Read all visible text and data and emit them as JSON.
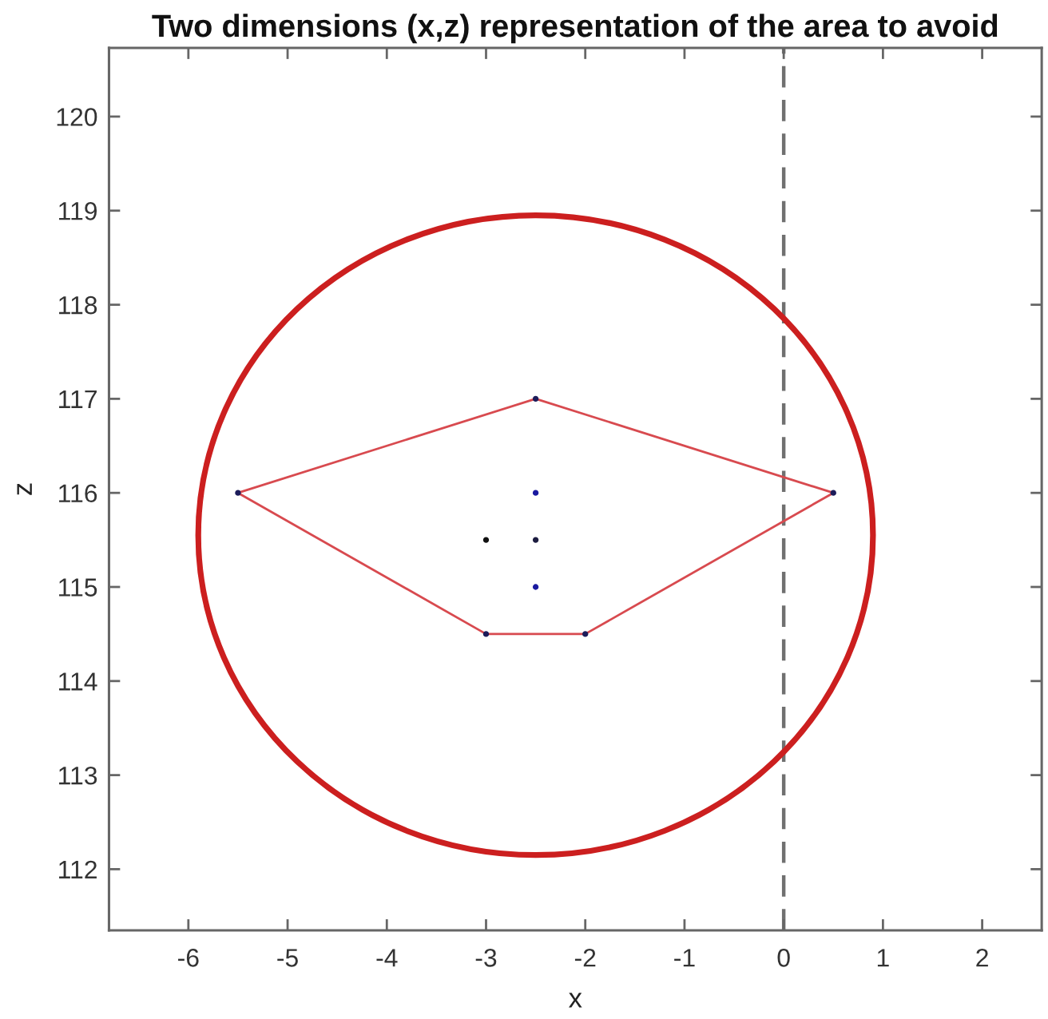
{
  "chart_data": {
    "type": "line",
    "title": "Two dimensions (x,z) representation of the area to avoid",
    "xlabel": "x",
    "ylabel": "z",
    "xlim": [
      -6.8,
      2.6
    ],
    "ylim": [
      111.35,
      120.73
    ],
    "xticks": [
      -6,
      -5,
      -4,
      -3,
      -2,
      -1,
      0,
      1,
      2
    ],
    "yticks": [
      112,
      113,
      114,
      115,
      116,
      117,
      118,
      119,
      120
    ],
    "grid": false,
    "series": [
      {
        "color": "#d84a4f",
        "marker": "none",
        "line_style": "solid",
        "x": [
          -5.5,
          -2.5,
          0.5
        ],
        "values": [
          116,
          117,
          116
        ]
      },
      {
        "color": "#d84a4f",
        "marker": "none",
        "line_style": "solid",
        "x": [
          -5.5,
          -3,
          -2,
          0.5
        ],
        "values": [
          116,
          114.5,
          114.5,
          116
        ]
      },
      {
        "type": "scatter",
        "marker": "circle",
        "x": [
          -5.5,
          -2.5,
          0.5,
          -2,
          -3,
          -2.5,
          -3,
          -2.5,
          -2.5
        ],
        "values": [
          116,
          117,
          116,
          114.5,
          114.5,
          116,
          115.5,
          115.5,
          115
        ],
        "colors": [
          "#1c1c5a",
          "#1c1c5a",
          "#1c1c5a",
          "#1c1c5a",
          "#1c1c5a",
          "#1a1aa0",
          "#111111",
          "#1c1c40",
          "#1a1aa0"
        ]
      }
    ],
    "ref_lines": [
      {
        "axis": "x",
        "value": 0,
        "color": "#707070",
        "line_style": "dashed"
      }
    ]
  }
}
